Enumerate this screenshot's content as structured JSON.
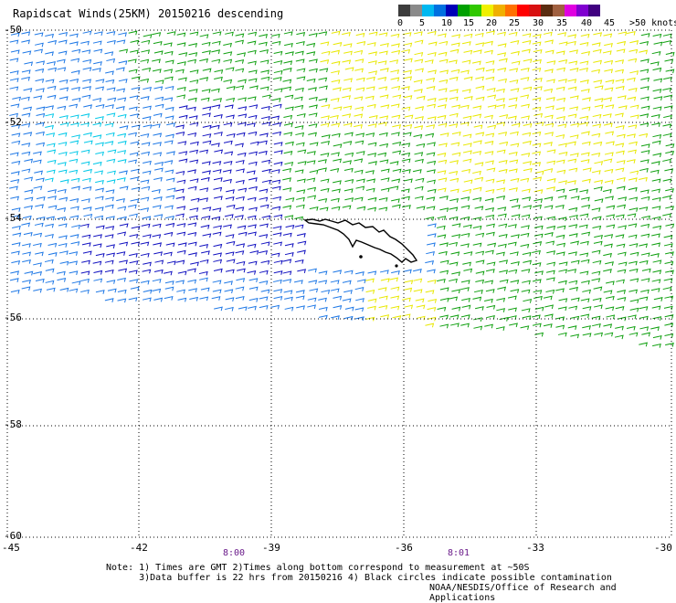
{
  "title": "Rapidscat Winds(25KM) 20150216 descending",
  "legend": {
    "colors": [
      "#3c3c3c",
      "#8a8a8a",
      "#00b8f0",
      "#0070e0",
      "#0000b8",
      "#00a000",
      "#30c800",
      "#f0f000",
      "#f0b000",
      "#ff7000",
      "#ff0000",
      "#d81010",
      "#5a2c10",
      "#a06040",
      "#e000e0",
      "#8000d0",
      "#400080"
    ],
    "labels": [
      "0",
      "5",
      "10",
      "15",
      "20",
      "25",
      "30",
      "35",
      "40",
      "45",
      ">50 knots"
    ]
  },
  "axes": {
    "lat_labels": [
      "-50",
      "-52",
      "-54",
      "-56",
      "-58",
      "-60"
    ],
    "lon_labels": [
      "-45",
      "-42",
      "-39",
      "-36",
      "-33",
      "-30"
    ]
  },
  "times": [
    "8:00",
    "8:01"
  ],
  "notes": [
    "Note: 1) Times are GMT 2)Times along bottom correspond to measurement at ~50S",
    "      3)Data buffer is 22 hrs from 20150216 4) Black circles indicate possible contamination"
  ],
  "credit": "NOAA/NESDIS/Office of Research and Applications",
  "colors": {
    "cyan": "#00c8e8",
    "blue_light": "#1e78e6",
    "blue_dark": "#1010c0",
    "green": "#10a010",
    "yellow": "#e8e800",
    "coast": "#000000",
    "grid": "#000000"
  }
}
